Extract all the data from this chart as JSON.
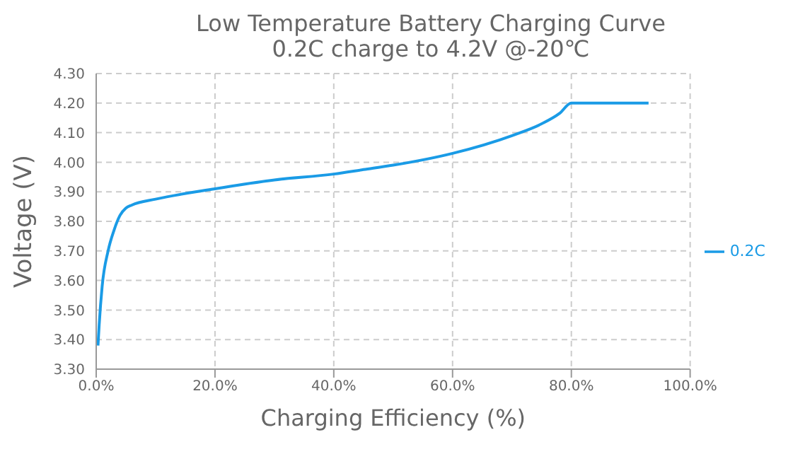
{
  "chart_data": {
    "type": "line",
    "title": "Low Temperature Battery Charging Curve",
    "subtitle": "0.2C charge to 4.2V @-20℃",
    "xlabel": "Charging Efficiency (%)",
    "ylabel": "Voltage  (V)",
    "x": [
      0.3,
      0.5,
      1,
      2,
      3,
      4,
      5,
      6,
      10,
      20,
      30,
      40,
      45,
      50,
      60,
      70,
      75,
      78,
      80,
      93
    ],
    "series": [
      {
        "name": "0.2C",
        "color": "#1a9be6",
        "values": [
          3.38,
          3.45,
          3.58,
          3.7,
          3.77,
          3.82,
          3.845,
          3.855,
          3.875,
          3.91,
          3.94,
          3.96,
          3.975,
          3.99,
          4.03,
          4.09,
          4.13,
          4.165,
          4.2,
          4.2
        ]
      }
    ],
    "xlim": [
      0,
      100
    ],
    "xticks": [
      {
        "value": 0,
        "label": "0.0%"
      },
      {
        "value": 20,
        "label": "20.0%"
      },
      {
        "value": 40,
        "label": "40.0%"
      },
      {
        "value": 60,
        "label": "60.0%"
      },
      {
        "value": 80,
        "label": "80.0%"
      },
      {
        "value": 100,
        "label": "100.0%"
      }
    ],
    "ylim": [
      3.3,
      4.3
    ],
    "yticks": [
      {
        "value": 3.3,
        "label": "3.30"
      },
      {
        "value": 3.4,
        "label": "3.40"
      },
      {
        "value": 3.5,
        "label": "3.50"
      },
      {
        "value": 3.6,
        "label": "3.60"
      },
      {
        "value": 3.7,
        "label": "3.70"
      },
      {
        "value": 3.8,
        "label": "3.80"
      },
      {
        "value": 3.9,
        "label": "3.90"
      },
      {
        "value": 4.0,
        "label": "4.00"
      },
      {
        "value": 4.1,
        "label": "4.10"
      },
      {
        "value": 4.2,
        "label": "4.20"
      },
      {
        "value": 4.3,
        "label": "4.30"
      }
    ],
    "grid": true,
    "legend": "right",
    "marker": "none",
    "line_style": "solid"
  }
}
